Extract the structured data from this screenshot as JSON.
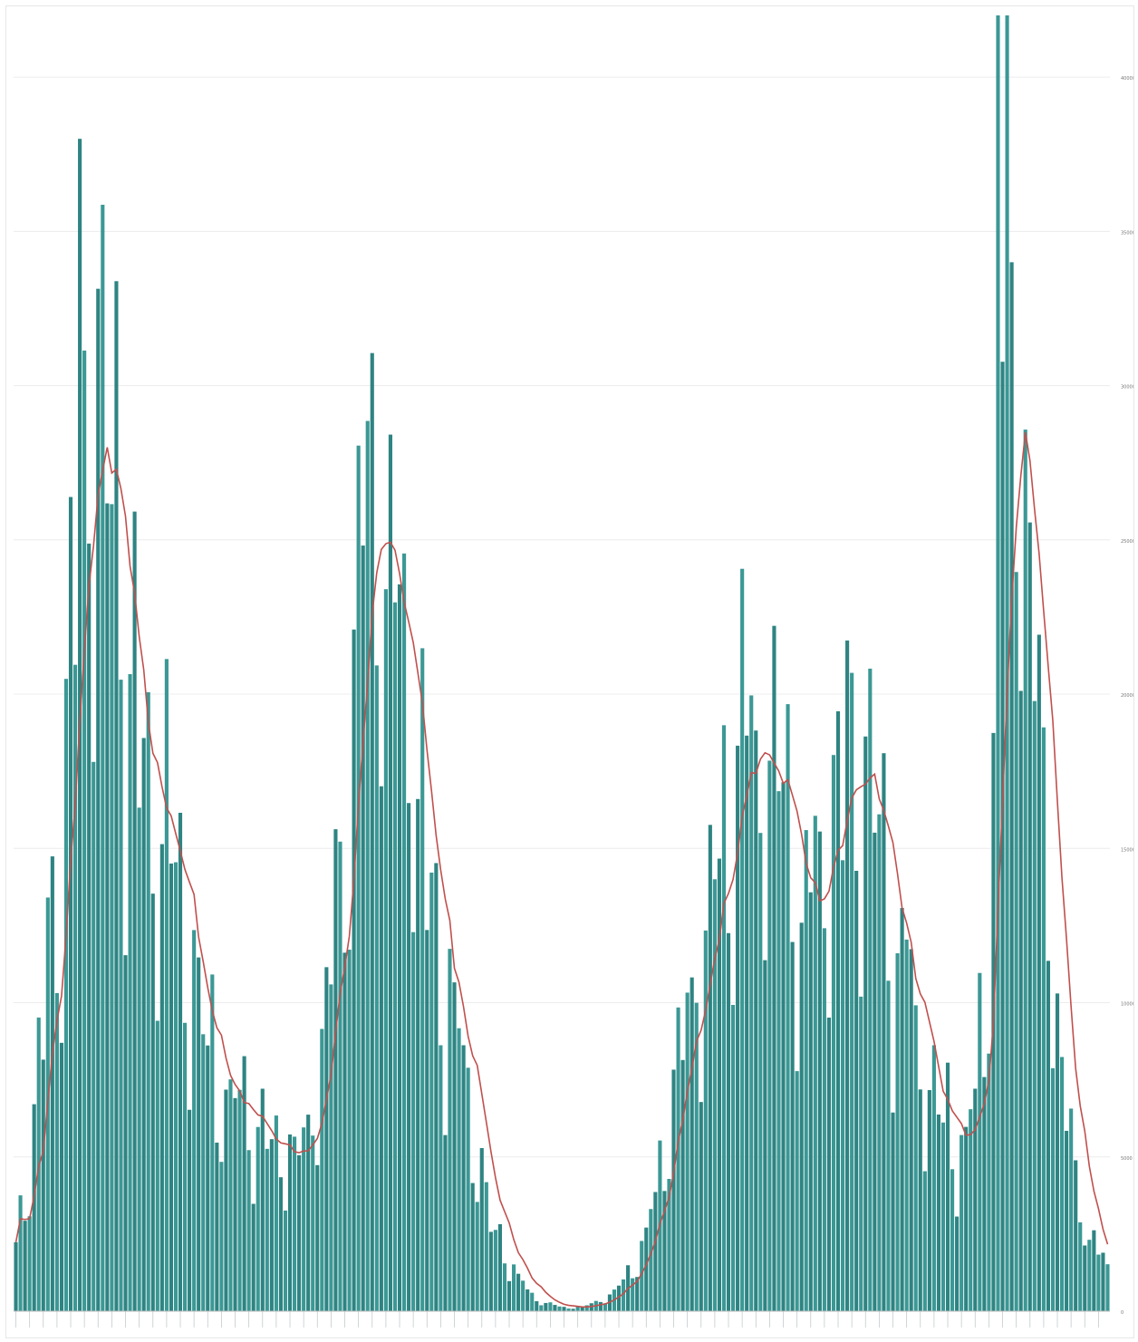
{
  "chart_data": {
    "type": "bar",
    "title": "",
    "xlabel": "",
    "ylabel": "",
    "ylim": [
      0,
      42000
    ],
    "yticks": [
      0,
      5000,
      10000,
      15000,
      20000,
      25000,
      30000,
      35000,
      40000
    ],
    "grid": true,
    "legend": "none",
    "colors": {
      "bar": "#2a8f8c",
      "bar_dark": "#1c7a77",
      "line": "#c0504d",
      "grid": "#ececec",
      "tick_text": "#777777"
    },
    "bar_count": 240,
    "segments": [
      [
        0,
        2000
      ],
      [
        4,
        6500
      ],
      [
        10,
        15000
      ],
      [
        14,
        27000
      ],
      [
        17,
        32000
      ],
      [
        20,
        29000
      ],
      [
        24,
        21000
      ],
      [
        28,
        17000
      ],
      [
        32,
        16000
      ],
      [
        36,
        13500
      ],
      [
        40,
        10000
      ],
      [
        45,
        7000
      ],
      [
        50,
        6500
      ],
      [
        55,
        6000
      ],
      [
        60,
        4800
      ],
      [
        64,
        5500
      ],
      [
        68,
        10000
      ],
      [
        72,
        16000
      ],
      [
        76,
        22000
      ],
      [
        80,
        27000
      ],
      [
        84,
        23000
      ],
      [
        88,
        17000
      ],
      [
        92,
        12000
      ],
      [
        96,
        9000
      ],
      [
        100,
        6000
      ],
      [
        104,
        3000
      ],
      [
        108,
        1500
      ],
      [
        112,
        700
      ],
      [
        116,
        250
      ],
      [
        120,
        120
      ],
      [
        124,
        150
      ],
      [
        128,
        350
      ],
      [
        132,
        800
      ],
      [
        136,
        1800
      ],
      [
        140,
        3500
      ],
      [
        144,
        7000
      ],
      [
        148,
        10500
      ],
      [
        152,
        14500
      ],
      [
        156,
        16000
      ],
      [
        160,
        18500
      ],
      [
        164,
        17500
      ],
      [
        168,
        15500
      ],
      [
        172,
        12000
      ],
      [
        176,
        13000
      ],
      [
        180,
        16500
      ],
      [
        184,
        17500
      ],
      [
        188,
        15500
      ],
      [
        192,
        12000
      ],
      [
        196,
        10000
      ],
      [
        200,
        7500
      ],
      [
        204,
        6000
      ],
      [
        208,
        5500
      ],
      [
        210,
        7000
      ],
      [
        213,
        12000
      ],
      [
        216,
        28000
      ],
      [
        218,
        34000
      ],
      [
        220,
        29000
      ],
      [
        223,
        22000
      ],
      [
        226,
        15000
      ],
      [
        229,
        8000
      ],
      [
        232,
        4200
      ],
      [
        235,
        2500
      ],
      [
        239,
        1500
      ]
    ],
    "spikes": [
      [
        14,
        38000
      ],
      [
        215,
        45000
      ],
      [
        217,
        45000
      ],
      [
        218,
        34000
      ]
    ]
  }
}
